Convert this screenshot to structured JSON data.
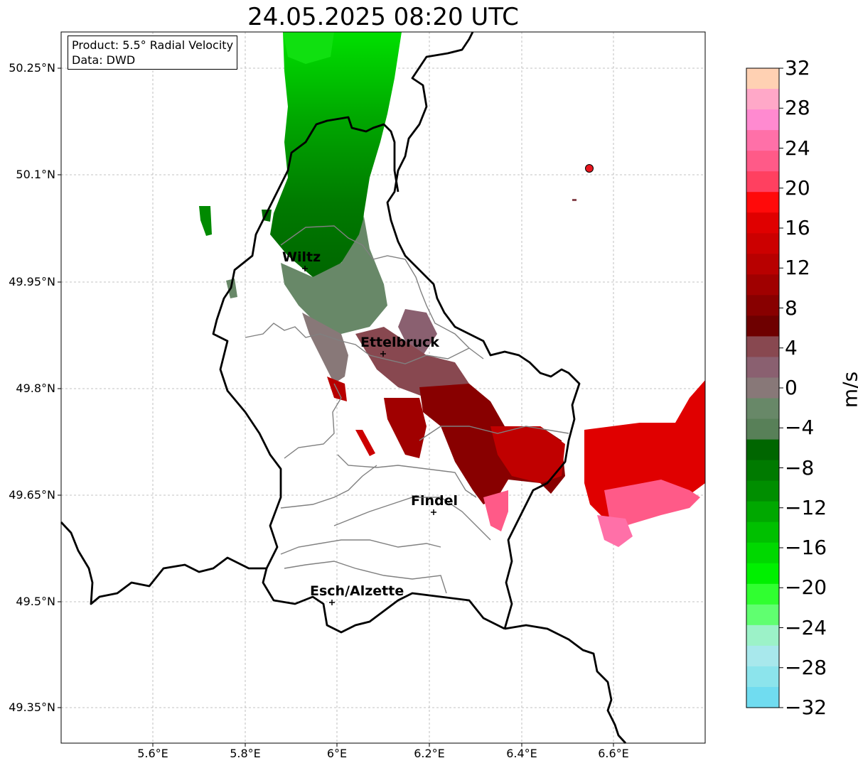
{
  "title": "24.05.2025 08:20 UTC",
  "info": {
    "product": "Product: 5.5° Radial Velocity",
    "data": "Data: DWD"
  },
  "colorbar": {
    "label": "m/s",
    "ticks": [
      "32",
      "28",
      "24",
      "20",
      "16",
      "12",
      "8",
      "4",
      "0",
      "−4",
      "−8",
      "−12",
      "−16",
      "−20",
      "−24",
      "−28",
      "−32"
    ],
    "colors_top_to_bottom": [
      "#ffd1b3",
      "#ffa8c8",
      "#ff8ad0",
      "#ff70a8",
      "#ff5a88",
      "#ff4060",
      "#ff0a0a",
      "#e00000",
      "#cc0000",
      "#b80000",
      "#a00000",
      "#880000",
      "#6e0000",
      "#884850",
      "#8a6070",
      "#887878",
      "#688868",
      "#588058",
      "#006600",
      "#007a00",
      "#008e00",
      "#00a800",
      "#00c000",
      "#00d800",
      "#00f000",
      "#30ff30",
      "#60ff70",
      "#9cf2c8",
      "#a8e8ec",
      "#8ce4ec",
      "#70dcf0"
    ]
  },
  "axes": {
    "lat_labels": [
      "50.25°N",
      "50.1°N",
      "49.95°N",
      "49.8°N",
      "49.65°N",
      "49.5°N",
      "49.35°N"
    ],
    "lon_labels": [
      "5.6°E",
      "5.8°E",
      "6°E",
      "6.2°E",
      "6.4°E",
      "6.6°E"
    ]
  },
  "cities": [
    {
      "name": "Wiltz"
    },
    {
      "name": "Ettelbruck"
    },
    {
      "name": "Findel"
    },
    {
      "name": "Esch/Alzette"
    }
  ],
  "colors": {
    "border": "#000000",
    "admin": "#808080",
    "grid": "#b0b0b0",
    "marker": "#e8161e"
  }
}
